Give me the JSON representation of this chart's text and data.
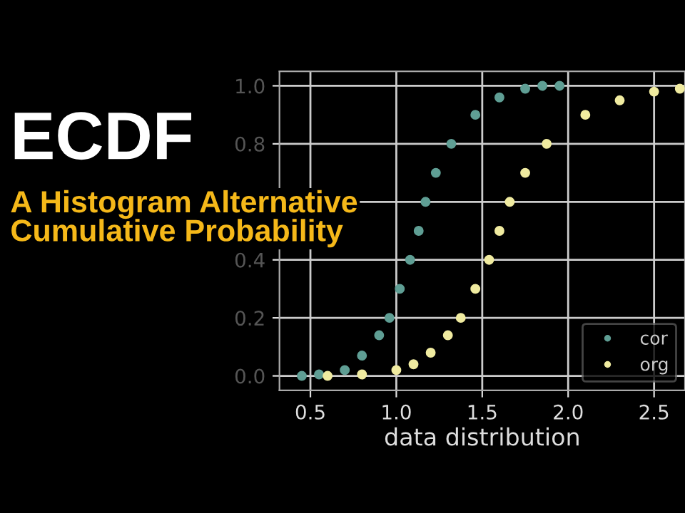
{
  "chart_data": {
    "type": "scatter",
    "title": "ECDF",
    "subtitle": "A Histogram Alternative\nCumulative Probability",
    "xlabel": "data distribution",
    "xlim": [
      0.32,
      2.68
    ],
    "ylim": [
      -0.05,
      1.05
    ],
    "xticks": [
      {
        "value": 0.5,
        "label": "0.5"
      },
      {
        "value": 1.0,
        "label": "1.0"
      },
      {
        "value": 1.5,
        "label": "1.5"
      },
      {
        "value": 2.0,
        "label": "2.0"
      },
      {
        "value": 2.5,
        "label": "2.5"
      }
    ],
    "yticks": [
      {
        "value": 0,
        "label": "0.0"
      },
      {
        "value": 0.2,
        "label": "0.2"
      },
      {
        "value": 0.4,
        "label": "0.4"
      },
      {
        "value": 0.6,
        "label": null
      },
      {
        "value": 0.8,
        "label": "0.8"
      },
      {
        "value": 1.0,
        "label": "1.0"
      }
    ],
    "grid": true,
    "legend": "bottom right",
    "marker": "circle",
    "series": [
      {
        "name": "cor",
        "color": "#5f9e94",
        "x": [
          0.45,
          0.55,
          0.7,
          0.8,
          0.9,
          0.96,
          1.02,
          1.08,
          1.13,
          1.17,
          1.23,
          1.32,
          1.46,
          1.6,
          1.75,
          1.85,
          1.95
        ],
        "values": [
          0,
          0.005,
          0.02,
          0.07,
          0.14,
          0.2,
          0.3,
          0.4,
          0.5,
          0.6,
          0.7,
          0.8,
          0.9,
          0.96,
          0.99,
          1.0,
          1.0
        ]
      },
      {
        "name": "org",
        "color": "#f0eba0",
        "x": [
          0.6,
          0.8,
          1.0,
          1.1,
          1.2,
          1.3,
          1.375,
          1.46,
          1.54,
          1.6,
          1.66,
          1.75,
          1.875,
          2.1,
          2.3,
          2.5,
          2.65
        ],
        "values": [
          0,
          0.005,
          0.02,
          0.04,
          0.08,
          0.14,
          0.2,
          0.3,
          0.4,
          0.5,
          0.6,
          0.7,
          0.8,
          0.9,
          0.95,
          0.98,
          0.99
        ]
      }
    ]
  }
}
